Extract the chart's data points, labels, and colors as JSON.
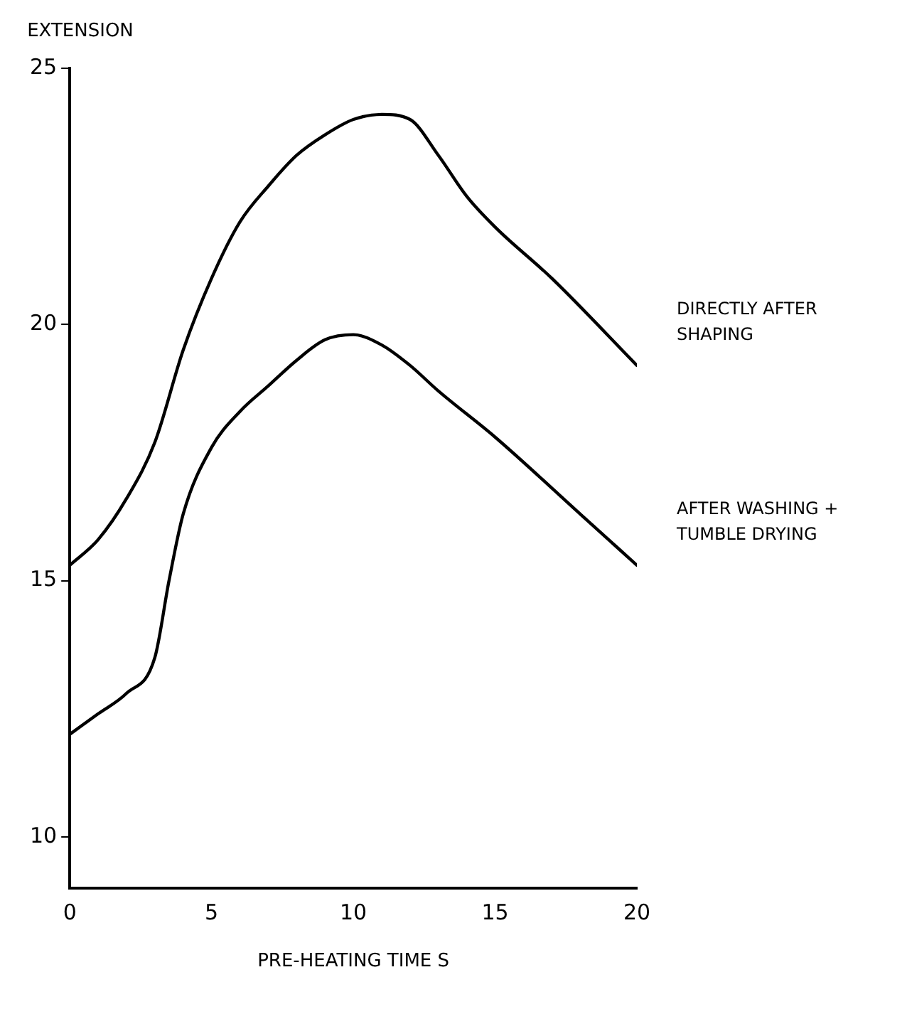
{
  "chart_data": {
    "type": "line",
    "xlabel": "PRE-HEATING TIME S",
    "ylabel": "EXTENSION",
    "xlim": [
      0,
      20
    ],
    "xticks": [
      0,
      5,
      10,
      15,
      20
    ],
    "ylim": [
      9,
      25
    ],
    "yticks": [
      10,
      15,
      20,
      25
    ],
    "grid": false,
    "legend": false,
    "marker": "none",
    "line_style": "solid",
    "series": [
      {
        "name": "DIRECTLY AFTER SHAPING",
        "color": "#000000",
        "x": [
          0,
          1,
          2,
          3,
          4,
          5,
          6,
          7,
          8,
          9,
          10,
          11,
          12,
          13,
          14,
          15,
          17,
          20
        ],
        "values": [
          15.3,
          15.8,
          16.6,
          17.7,
          19.5,
          20.9,
          22.0,
          22.7,
          23.3,
          23.7,
          24.0,
          24.1,
          24.0,
          23.3,
          22.5,
          21.9,
          20.9,
          19.2
        ]
      },
      {
        "name": "AFTER WASHING + TUMBLE DRYING",
        "color": "#000000",
        "x": [
          0,
          1,
          2,
          3,
          3.5,
          4,
          5,
          6,
          7,
          8,
          9,
          10,
          11,
          12,
          13,
          15,
          18,
          20
        ],
        "values": [
          12.0,
          12.4,
          12.8,
          13.5,
          15.0,
          16.3,
          17.6,
          18.3,
          18.8,
          19.3,
          19.7,
          19.8,
          19.6,
          19.2,
          18.7,
          17.8,
          16.3,
          15.3
        ]
      }
    ]
  }
}
